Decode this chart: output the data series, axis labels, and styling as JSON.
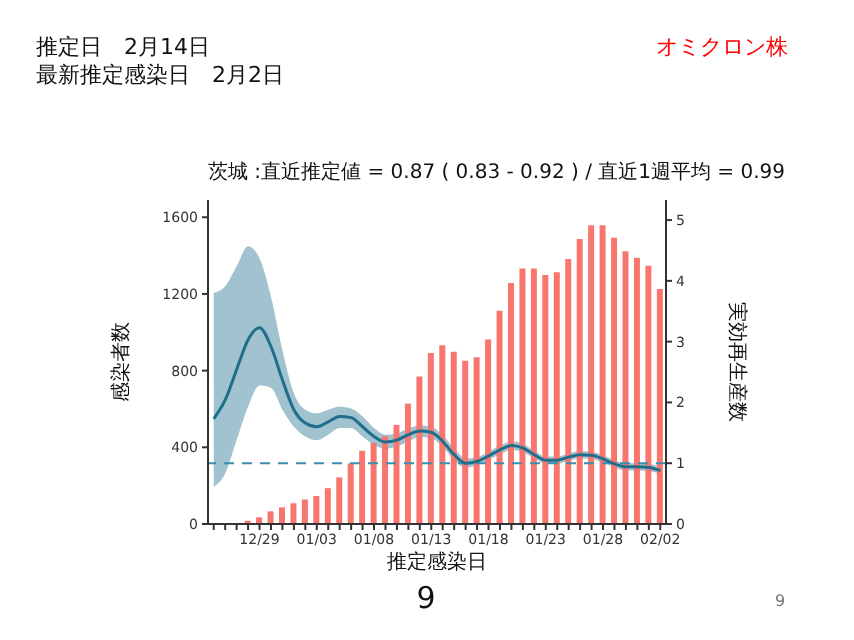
{
  "chart_data": {
    "type": "bar",
    "title": "茨城 :直近推定値 = 0.87 ( 0.83 - 0.92 ) / 直近1週平均 = 0.99",
    "xlabel": "推定感染日",
    "ylabel": "感染者数",
    "y2label": "実効再生産数",
    "annotations": [
      "推定日　2月14日",
      "最新推定感染日　2月2日",
      "オミクロン株",
      "9",
      "9"
    ],
    "categories": [
      null,
      null,
      null,
      null,
      "12/29",
      null,
      null,
      null,
      null,
      "01/03",
      null,
      null,
      null,
      null,
      "01/08",
      null,
      null,
      null,
      null,
      "01/13",
      null,
      null,
      null,
      null,
      "01/18",
      null,
      null,
      null,
      null,
      "01/23",
      null,
      null,
      null,
      null,
      "01/28",
      null,
      null,
      null,
      null,
      "02/02"
    ],
    "series": [
      {
        "color": "#f8766d",
        "values": [
          0,
          2,
          5,
          17,
          35,
          66,
          87,
          108,
          128,
          146,
          187,
          243,
          316,
          382,
          423,
          458,
          517,
          628,
          770,
          892,
          933,
          899,
          852,
          870,
          963,
          1112,
          1257,
          1333,
          1333,
          1299,
          1313,
          1382,
          1486,
          1558,
          1558,
          1493,
          1423,
          1389,
          1347,
          1226
        ]
      },
      {
        "type": "line",
        "axis": "y2",
        "color": "#1f6e8c",
        "values": [
          1.73,
          2.04,
          2.54,
          3.03,
          3.23,
          2.92,
          2.37,
          1.88,
          1.66,
          1.6,
          1.68,
          1.77,
          1.75,
          1.6,
          1.44,
          1.35,
          1.38,
          1.47,
          1.53,
          1.51,
          1.36,
          1.14,
          1.0,
          1.03,
          1.12,
          1.22,
          1.29,
          1.25,
          1.14,
          1.05,
          1.05,
          1.1,
          1.14,
          1.13,
          1.07,
          0.99,
          0.94,
          0.94,
          0.93,
          0.88
        ],
        "lower": [
          0.61,
          0.83,
          1.38,
          1.93,
          2.28,
          2.24,
          1.88,
          1.6,
          1.44,
          1.38,
          1.47,
          1.58,
          1.58,
          1.44,
          1.3,
          1.24,
          1.27,
          1.36,
          1.43,
          1.41,
          1.27,
          1.05,
          0.93,
          0.97,
          1.05,
          1.15,
          1.22,
          1.18,
          1.08,
          0.99,
          0.99,
          1.04,
          1.08,
          1.07,
          1.01,
          0.93,
          0.88,
          0.88,
          0.87,
          0.82
        ],
        "upper": [
          3.8,
          3.91,
          4.24,
          4.57,
          4.37,
          3.74,
          2.86,
          2.15,
          1.88,
          1.82,
          1.88,
          1.93,
          1.9,
          1.77,
          1.58,
          1.47,
          1.49,
          1.57,
          1.62,
          1.6,
          1.46,
          1.24,
          1.08,
          1.1,
          1.19,
          1.29,
          1.36,
          1.32,
          1.2,
          1.11,
          1.11,
          1.16,
          1.2,
          1.19,
          1.13,
          1.05,
          1.0,
          1.0,
          0.99,
          0.94
        ]
      }
    ],
    "ylim": [
      0,
      1690
    ],
    "yticks": [
      0,
      400,
      800,
      1200,
      1600
    ],
    "y2lim": [
      0,
      5.33
    ],
    "y2ticks": [
      0,
      1,
      2,
      3,
      4,
      5
    ],
    "ref_lines": [
      {
        "axis": "y2",
        "value": 1,
        "color": "#3a8fb0",
        "line_style": "dashed"
      }
    ]
  }
}
